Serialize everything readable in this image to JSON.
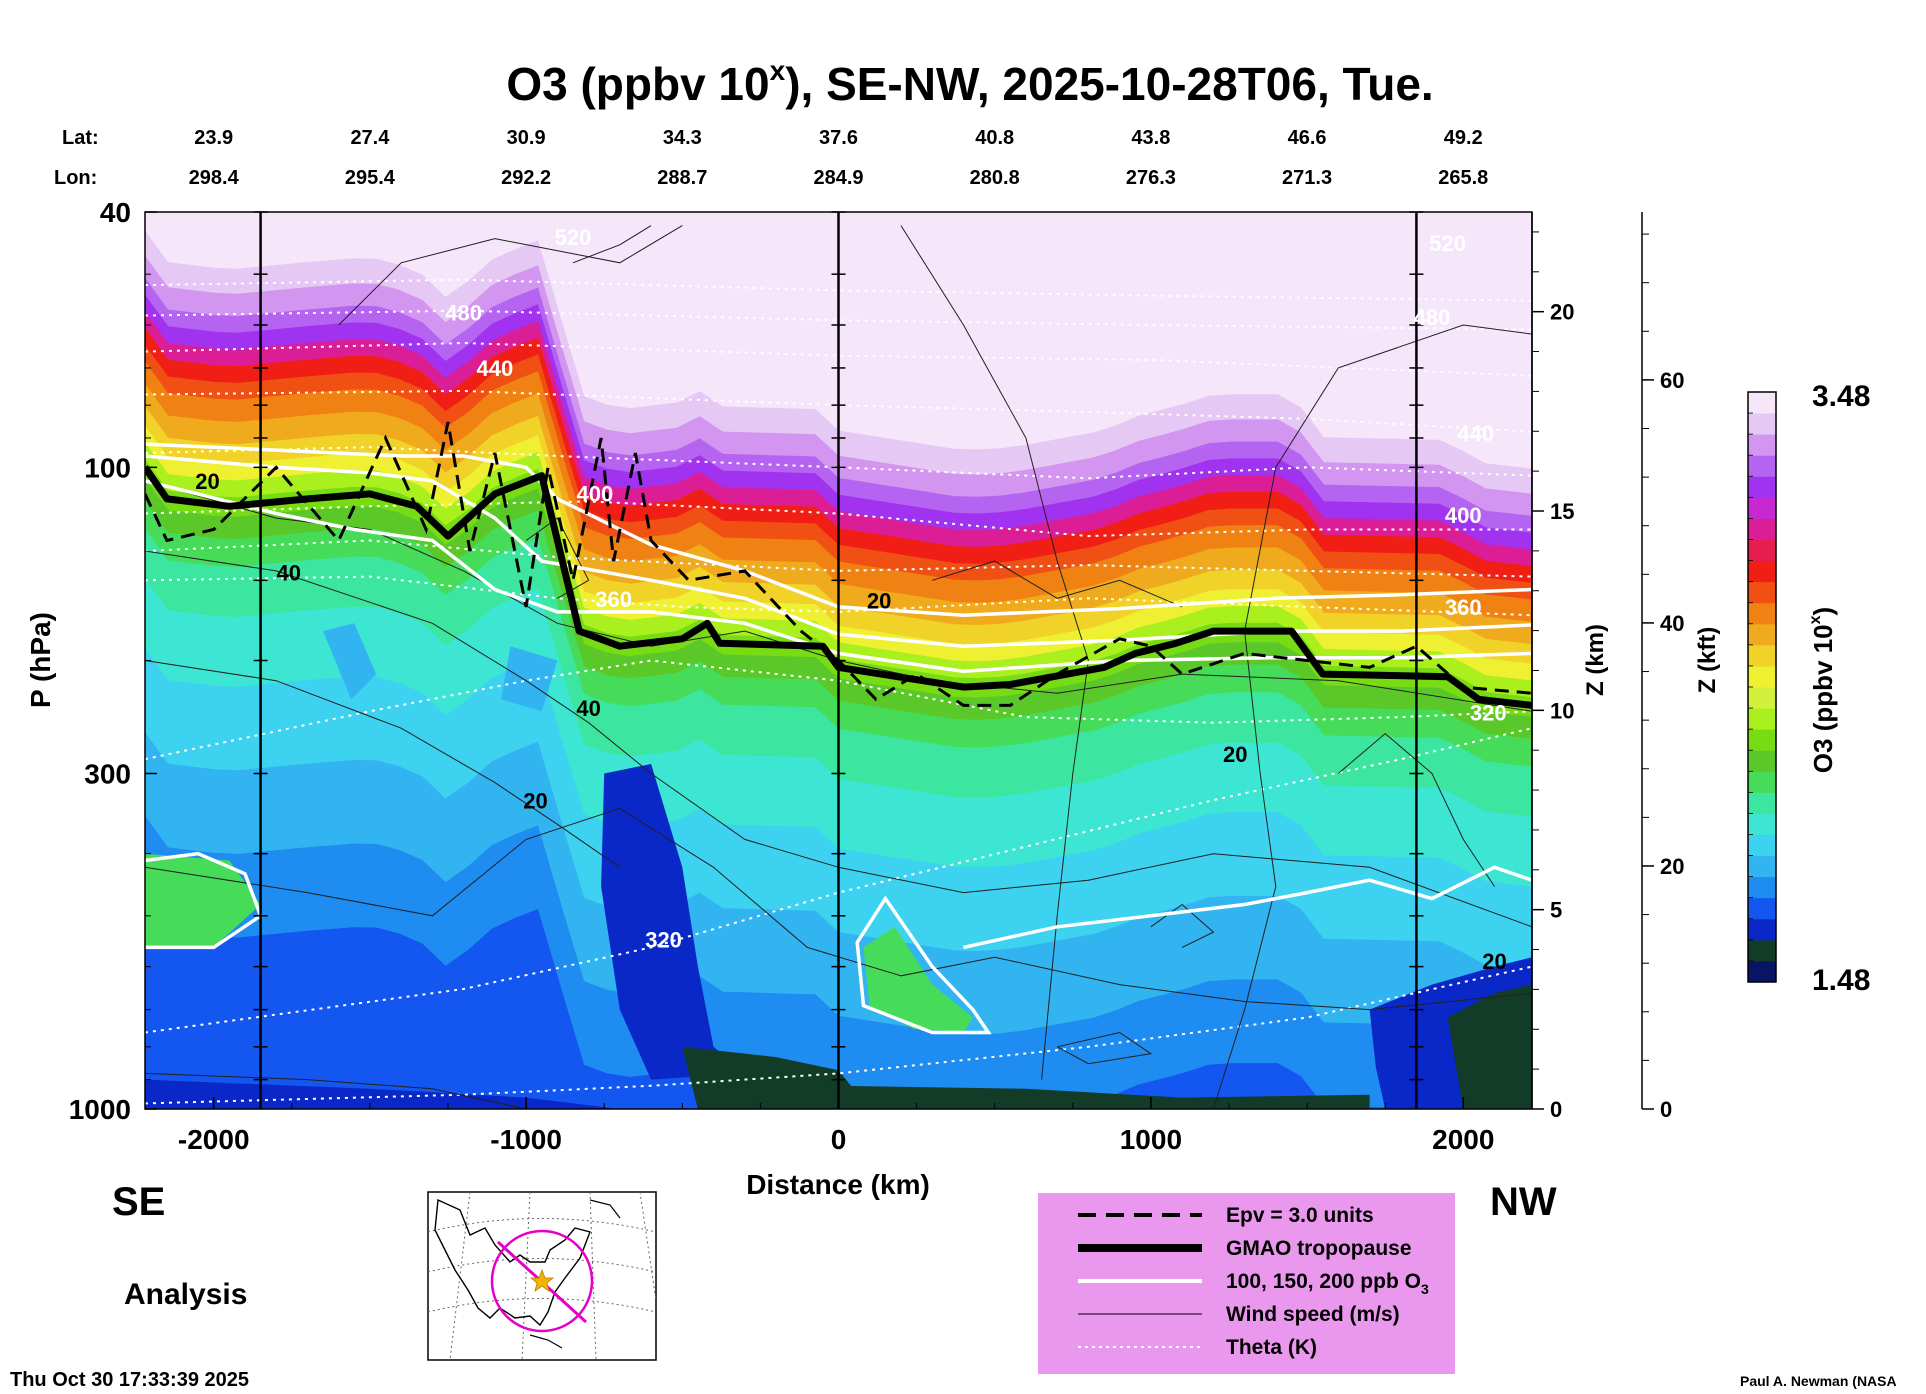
{
  "chart_data": {
    "type": "heatmap",
    "title_prefix": "O3 (ppbv 10",
    "title_sup": "x",
    "title_suffix": "), SE-NW, 2025-10-28T06, Tue.",
    "lat_label": "Lat:",
    "lon_label": "Lon:",
    "station_x": [
      -2000,
      -1500,
      -1000,
      -500,
      0,
      500,
      1000,
      1500,
      2000
    ],
    "lat_values": [
      "23.9",
      "27.4",
      "30.9",
      "34.3",
      "37.6",
      "40.8",
      "43.8",
      "46.6",
      "49.2"
    ],
    "lon_values": [
      "298.4",
      "295.4",
      "292.2",
      "288.7",
      "284.9",
      "280.8",
      "276.3",
      "271.3",
      "265.8"
    ],
    "xlabel": "Distance (km)",
    "xlim": [
      -2220,
      2220
    ],
    "x_ticks": [
      -2000,
      -1000,
      0,
      1000,
      2000
    ],
    "x_tick_labels": [
      "-2000",
      "-1000",
      "0",
      "1000",
      "2000"
    ],
    "ylabel": "P (hPa)",
    "ylim": [
      1000,
      40
    ],
    "y_scale": "log",
    "y_ticks": [
      40,
      100,
      300,
      1000
    ],
    "y_tick_labels": [
      "40",
      "100",
      "300",
      "1000"
    ],
    "z_km_label": "Z (km)",
    "z_km_ticks": [
      0,
      5,
      10,
      15,
      20
    ],
    "z_km_tick_labels": [
      "0",
      "5",
      "10",
      "15",
      "20"
    ],
    "z_kft_label": "Z (kft)",
    "z_kft_ticks": [
      0,
      20,
      40,
      60
    ],
    "z_kft_tick_labels": [
      "0",
      "20",
      "40",
      "60"
    ],
    "vertical_markers": [
      -1850,
      0,
      1850
    ],
    "left_direction": "SE",
    "right_direction": "NW",
    "run_label": "Analysis",
    "colorbar": {
      "label_prefix": "O3 (ppbv 10",
      "label_sup": "x",
      "label_suffix": ")",
      "min": 1.48,
      "max": 3.48,
      "min_label": "1.48",
      "max_label": "3.48",
      "colors": [
        "#0a1464",
        "#123c28",
        "#0a28c8",
        "#1456f0",
        "#1e8cf0",
        "#32b4f0",
        "#3cd2f0",
        "#3ce6d2",
        "#3ce6a0",
        "#46dc5a",
        "#5ac828",
        "#78dc14",
        "#aaf01e",
        "#d2f03c",
        "#f0f032",
        "#f0d228",
        "#f0aa1e",
        "#f08214",
        "#f05014",
        "#f01e14",
        "#e61e50",
        "#dc1e96",
        "#c828d2",
        "#a032f0",
        "#b464f0",
        "#d296f0",
        "#e6c8f5",
        "#f5e6fa"
      ]
    },
    "tropopause_hpa": [
      [
        -2220,
        100
      ],
      [
        -2150,
        112
      ],
      [
        -1950,
        115
      ],
      [
        -1700,
        112
      ],
      [
        -1500,
        110
      ],
      [
        -1350,
        115
      ],
      [
        -1250,
        128
      ],
      [
        -1100,
        110
      ],
      [
        -950,
        103
      ],
      [
        -900,
        130
      ],
      [
        -830,
        180
      ],
      [
        -700,
        190
      ],
      [
        -500,
        185
      ],
      [
        -420,
        175
      ],
      [
        -380,
        188
      ],
      [
        -50,
        190
      ],
      [
        0,
        205
      ],
      [
        400,
        220
      ],
      [
        550,
        218
      ],
      [
        850,
        205
      ],
      [
        950,
        195
      ],
      [
        1080,
        188
      ],
      [
        1200,
        180
      ],
      [
        1450,
        180
      ],
      [
        1550,
        210
      ],
      [
        1950,
        212
      ],
      [
        2050,
        230
      ],
      [
        2220,
        235
      ]
    ],
    "epv_hpa": [
      [
        -2220,
        110
      ],
      [
        -2150,
        130
      ],
      [
        -2000,
        125
      ],
      [
        -1800,
        100
      ],
      [
        -1600,
        130
      ],
      [
        -1450,
        90
      ],
      [
        -1320,
        125
      ],
      [
        -1250,
        85
      ],
      [
        -1180,
        135
      ],
      [
        -1100,
        95
      ],
      [
        -1000,
        165
      ],
      [
        -930,
        100
      ],
      [
        -850,
        150
      ],
      [
        -760,
        90
      ],
      [
        -720,
        140
      ],
      [
        -650,
        95
      ],
      [
        -600,
        130
      ],
      [
        -480,
        150
      ],
      [
        -300,
        145
      ],
      [
        -120,
        180
      ],
      [
        0,
        200
      ],
      [
        120,
        230
      ],
      [
        250,
        210
      ],
      [
        400,
        235
      ],
      [
        550,
        235
      ],
      [
        700,
        210
      ],
      [
        900,
        185
      ],
      [
        1000,
        190
      ],
      [
        1100,
        210
      ],
      [
        1300,
        195
      ],
      [
        1500,
        200
      ],
      [
        1700,
        205
      ],
      [
        1850,
        190
      ],
      [
        2000,
        220
      ],
      [
        2220,
        225
      ]
    ],
    "o3_100ppb_hpa": [
      [
        -2220,
        105
      ],
      [
        -1800,
        118
      ],
      [
        -1550,
        125
      ],
      [
        -1300,
        130
      ],
      [
        -1100,
        155
      ],
      [
        -900,
        168
      ],
      [
        -600,
        168
      ],
      [
        -300,
        175
      ],
      [
        0,
        195
      ],
      [
        400,
        208
      ],
      [
        900,
        200
      ],
      [
        1400,
        198
      ],
      [
        1800,
        198
      ],
      [
        2220,
        195
      ]
    ],
    "o3_150ppb_hpa": [
      [
        -2220,
        96
      ],
      [
        -1800,
        100
      ],
      [
        -1500,
        102
      ],
      [
        -1300,
        105
      ],
      [
        -1100,
        120
      ],
      [
        -950,
        140
      ],
      [
        -600,
        150
      ],
      [
        -300,
        160
      ],
      [
        0,
        182
      ],
      [
        400,
        190
      ],
      [
        900,
        186
      ],
      [
        1400,
        180
      ],
      [
        1800,
        180
      ],
      [
        2220,
        176
      ]
    ],
    "o3_200ppb_hpa": [
      [
        -2220,
        92
      ],
      [
        -1800,
        94
      ],
      [
        -1400,
        96
      ],
      [
        -1200,
        96
      ],
      [
        -1000,
        100
      ],
      [
        -900,
        112
      ],
      [
        -600,
        132
      ],
      [
        -300,
        145
      ],
      [
        0,
        165
      ],
      [
        400,
        170
      ],
      [
        900,
        166
      ],
      [
        1400,
        160
      ],
      [
        1800,
        158
      ],
      [
        2220,
        155
      ]
    ],
    "o3_100ppb_lower_hpa": [
      [
        -2220,
        410
      ],
      [
        -2050,
        400
      ],
      [
        -1900,
        430
      ],
      [
        -1850,
        500
      ],
      [
        -2000,
        560
      ],
      [
        -2220,
        560
      ]
    ],
    "o3_100ppb_blob_hpa": [
      [
        60,
        550
      ],
      [
        150,
        470
      ],
      [
        300,
        600
      ],
      [
        430,
        700
      ],
      [
        480,
        760
      ],
      [
        300,
        760
      ],
      [
        80,
        690
      ]
    ],
    "theta_levels": [
      {
        "label": "320",
        "p_start": 760,
        "p_end": 260,
        "label_x": -560,
        "label_p": 560
      },
      {
        "label": "360",
        "p_start": 150,
        "p_end": 170,
        "label_x": -720,
        "label_p": 165
      },
      {
        "label": "400",
        "p_start": 105,
        "p_end": 120,
        "label_x": -780,
        "label_p": 113
      },
      {
        "label": "440",
        "p_start": 70,
        "p_end": 80,
        "label_x": -1100,
        "label_p": 72
      },
      {
        "label": "480",
        "p_start": 58,
        "p_end": 62,
        "label_x": -1200,
        "label_p": 59
      },
      {
        "label": "520",
        "p_start": 45,
        "p_end": 45,
        "label_x": -850,
        "label_p": 45
      }
    ],
    "theta_extra": [
      {
        "label": "400",
        "x": 2000,
        "p": 122
      },
      {
        "label": "440",
        "x": 2040,
        "p": 91
      },
      {
        "label": "360",
        "x": 2000,
        "p": 170
      },
      {
        "label": "320",
        "x": 2080,
        "p": 248
      },
      {
        "label": "480",
        "x": 1900,
        "p": 60
      },
      {
        "label": "520",
        "x": 1950,
        "p": 46
      }
    ],
    "wind_labels": [
      {
        "label": "20",
        "x": -2020,
        "p": 108
      },
      {
        "label": "40",
        "x": -1760,
        "p": 150
      },
      {
        "label": "40",
        "x": -800,
        "p": 244
      },
      {
        "label": "20",
        "x": -970,
        "p": 340
      },
      {
        "label": "20",
        "x": 130,
        "p": 166
      },
      {
        "label": "20",
        "x": 1270,
        "p": 288
      },
      {
        "label": "20",
        "x": 2100,
        "p": 605
      }
    ],
    "legend": [
      {
        "style": "dashed",
        "label": "Epv = 3.0 units"
      },
      {
        "style": "thick",
        "label": "GMAO tropopause"
      },
      {
        "style": "white",
        "label": "100, 150, 200 ppb O"
      },
      {
        "style": "thin",
        "label": "Wind speed (m/s)"
      },
      {
        "style": "dotted",
        "label": "Theta (K)"
      }
    ],
    "legend_sub3": "3",
    "timestamp": "Thu Oct 30 17:33:39 2025",
    "credit": "Paul A. Newman (NASA"
  }
}
